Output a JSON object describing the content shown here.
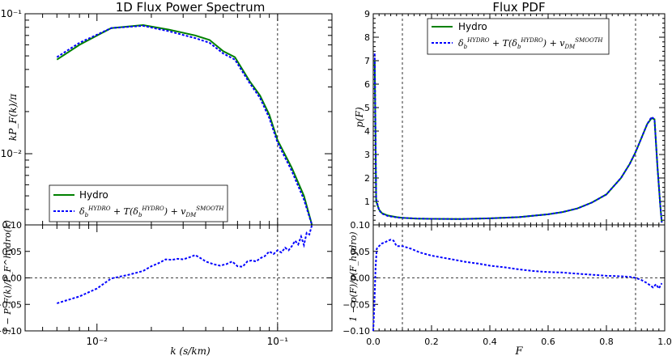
{
  "colors": {
    "hydro": "#008000",
    "model": "#0000ff",
    "axis": "#000000"
  },
  "legend": {
    "hydro": "Hydro",
    "model_prefix": "δ",
    "model_sub": "b",
    "model_sup": "HYDRO",
    "model_mid": " + T(δ",
    "model_mid2": ") + v",
    "model_sub2": "DM",
    "model_sup2": "SMOOTH"
  },
  "chart_data": [
    {
      "id": "flux-power",
      "type": "line",
      "title": "1D Flux Power Spectrum",
      "xscale": "log",
      "yscale": "log",
      "xlim": [
        0.004,
        0.2
      ],
      "ylim": [
        0.0031,
        0.1
      ],
      "ylabel": "kP_F(k)/π",
      "xtick_labels": [
        "10⁻²",
        "10⁻¹"
      ],
      "ytick_labels": [
        "10⁻¹",
        "10⁻²",
        "0.10"
      ],
      "vline": 0.1,
      "legend_position": "lower-left",
      "series": [
        {
          "name": "Hydro",
          "x": [
            0.006,
            0.008,
            0.012,
            0.018,
            0.025,
            0.035,
            0.042,
            0.05,
            0.058,
            0.07,
            0.08,
            0.09,
            0.1,
            0.12,
            0.14,
            0.155
          ],
          "y": [
            0.047,
            0.06,
            0.079,
            0.083,
            0.077,
            0.07,
            0.065,
            0.054,
            0.049,
            0.033,
            0.026,
            0.019,
            0.0125,
            0.0079,
            0.005,
            0.0031
          ]
        },
        {
          "name": "Model",
          "x": [
            0.006,
            0.008,
            0.012,
            0.018,
            0.025,
            0.035,
            0.042,
            0.05,
            0.058,
            0.07,
            0.08,
            0.09,
            0.1,
            0.12,
            0.14,
            0.155
          ],
          "y": [
            0.049,
            0.062,
            0.079,
            0.082,
            0.075,
            0.067,
            0.062,
            0.052,
            0.047,
            0.032,
            0.025,
            0.018,
            0.012,
            0.0075,
            0.0047,
            0.0031
          ]
        }
      ]
    },
    {
      "id": "flux-power-residual",
      "type": "line",
      "xscale": "log",
      "xlim": [
        0.004,
        0.2
      ],
      "ylim": [
        -0.1,
        0.1
      ],
      "xlabel": "k (s/km)",
      "ylabel": "1 − P_F(k)/P_F^hydro(k)",
      "ytick_labels": [
        "0.05",
        "0.00",
        "−0.05",
        "−0.10"
      ],
      "yticks": [
        0.05,
        0.0,
        -0.05,
        -0.1
      ],
      "hline": 0.0,
      "vline": 0.1,
      "series": [
        {
          "name": "Model",
          "x": [
            0.006,
            0.008,
            0.01,
            0.012,
            0.015,
            0.018,
            0.02,
            0.022,
            0.024,
            0.026,
            0.028,
            0.03,
            0.032,
            0.035,
            0.038,
            0.04,
            0.044,
            0.048,
            0.052,
            0.056,
            0.06,
            0.064,
            0.068,
            0.072,
            0.076,
            0.08,
            0.085,
            0.09,
            0.095,
            0.1,
            0.105,
            0.11,
            0.115,
            0.12,
            0.125,
            0.13,
            0.135,
            0.14,
            0.145,
            0.15,
            0.155
          ],
          "y": [
            -0.048,
            -0.035,
            -0.02,
            -0.001,
            0.006,
            0.013,
            0.022,
            0.028,
            0.035,
            0.034,
            0.036,
            0.035,
            0.038,
            0.043,
            0.036,
            0.031,
            0.026,
            0.023,
            0.026,
            0.031,
            0.022,
            0.021,
            0.031,
            0.033,
            0.031,
            0.037,
            0.041,
            0.05,
            0.045,
            0.052,
            0.048,
            0.057,
            0.052,
            0.06,
            0.07,
            0.063,
            0.078,
            0.062,
            0.085,
            0.082,
            0.1
          ]
        }
      ]
    },
    {
      "id": "flux-pdf",
      "type": "line",
      "title": "Flux PDF",
      "xlim": [
        0.0,
        1.0
      ],
      "ylim": [
        0.0,
        9.0
      ],
      "ylabel": "p(F)",
      "ytick_labels": [
        "9",
        "8",
        "7",
        "6",
        "5",
        "4",
        "3",
        "2",
        "1",
        "0.10"
      ],
      "yticks": [
        9,
        8,
        7,
        6,
        5,
        4,
        3,
        2,
        1
      ],
      "vlines": [
        0.1,
        0.9
      ],
      "legend_position": "top-center",
      "series": [
        {
          "name": "Hydro",
          "x": [
            0.005,
            0.01,
            0.02,
            0.03,
            0.05,
            0.08,
            0.1,
            0.15,
            0.2,
            0.3,
            0.4,
            0.5,
            0.6,
            0.65,
            0.7,
            0.75,
            0.8,
            0.85,
            0.88,
            0.9,
            0.92,
            0.94,
            0.955,
            0.965,
            0.975,
            0.985,
            0.99
          ],
          "y": [
            7.0,
            1.0,
            0.65,
            0.5,
            0.4,
            0.33,
            0.3,
            0.27,
            0.26,
            0.25,
            0.28,
            0.33,
            0.45,
            0.55,
            0.7,
            0.95,
            1.3,
            2.0,
            2.6,
            3.1,
            3.7,
            4.3,
            4.55,
            4.5,
            2.5,
            0.8,
            0.1
          ]
        },
        {
          "name": "Model",
          "x": [
            0.005,
            0.01,
            0.02,
            0.03,
            0.05,
            0.08,
            0.1,
            0.15,
            0.2,
            0.3,
            0.4,
            0.5,
            0.6,
            0.65,
            0.7,
            0.75,
            0.8,
            0.85,
            0.88,
            0.9,
            0.92,
            0.94,
            0.955,
            0.965,
            0.975,
            0.985,
            0.99
          ],
          "y": [
            7.3,
            1.1,
            0.62,
            0.48,
            0.38,
            0.32,
            0.3,
            0.27,
            0.26,
            0.25,
            0.28,
            0.33,
            0.45,
            0.55,
            0.7,
            0.95,
            1.3,
            2.0,
            2.6,
            3.1,
            3.7,
            4.3,
            4.6,
            4.5,
            2.5,
            0.8,
            0.1
          ]
        }
      ]
    },
    {
      "id": "flux-pdf-residual",
      "type": "line",
      "xlim": [
        0.0,
        1.0
      ],
      "ylim": [
        -0.1,
        0.1
      ],
      "xlabel": "F",
      "ylabel": "1 − p(F)/p(F_hydro)",
      "xtick_labels": [
        "0.0",
        "0.2",
        "0.4",
        "0.6",
        "0.8",
        "1.0"
      ],
      "xticks": [
        0.0,
        0.2,
        0.4,
        0.6,
        0.8,
        1.0
      ],
      "ytick_labels": [
        "0.05",
        "0.00",
        "−0.05",
        "−0.10"
      ],
      "yticks": [
        0.05,
        0.0,
        -0.05,
        -0.1
      ],
      "hline": 0.0,
      "vlines": [
        0.1,
        0.9
      ],
      "series": [
        {
          "name": "Model",
          "x": [
            0.0,
            0.004,
            0.008,
            0.012,
            0.02,
            0.03,
            0.04,
            0.05,
            0.06,
            0.07,
            0.08,
            0.1,
            0.13,
            0.16,
            0.2,
            0.24,
            0.28,
            0.32,
            0.36,
            0.4,
            0.45,
            0.5,
            0.55,
            0.6,
            0.65,
            0.7,
            0.75,
            0.8,
            0.85,
            0.88,
            0.9,
            0.92,
            0.94,
            0.96,
            0.97,
            0.98,
            0.99
          ],
          "y": [
            -0.1,
            -0.05,
            0.02,
            0.055,
            0.06,
            0.065,
            0.067,
            0.07,
            0.072,
            0.07,
            0.06,
            0.06,
            0.055,
            0.048,
            0.042,
            0.038,
            0.034,
            0.03,
            0.027,
            0.023,
            0.02,
            0.016,
            0.013,
            0.011,
            0.01,
            0.008,
            0.006,
            0.004,
            0.003,
            0.002,
            0.0,
            -0.004,
            -0.01,
            -0.018,
            -0.012,
            -0.02,
            -0.01
          ]
        }
      ]
    }
  ]
}
